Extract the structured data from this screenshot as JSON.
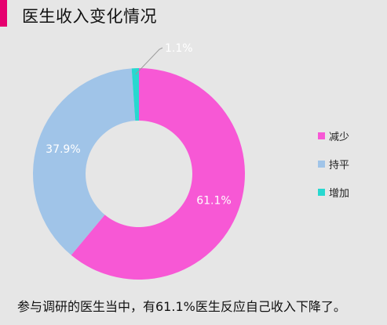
{
  "header": {
    "title": "医生收入变化情况",
    "accent_color": "#e6006f"
  },
  "chart_data": {
    "type": "pie",
    "donut": true,
    "categories": [
      "减少",
      "持平",
      "增加"
    ],
    "values": [
      61.1,
      37.9,
      1.1
    ],
    "value_labels": [
      "61.1%",
      "37.9%",
      "1.1%"
    ],
    "colors": [
      "#f758d5",
      "#a0c4e8",
      "#28d8d0"
    ],
    "legend_position": "right"
  },
  "footer": {
    "note": "参与调研的医生当中，有61.1%医生反应自己收入下降了。"
  },
  "background_color": "#e6e6e6"
}
